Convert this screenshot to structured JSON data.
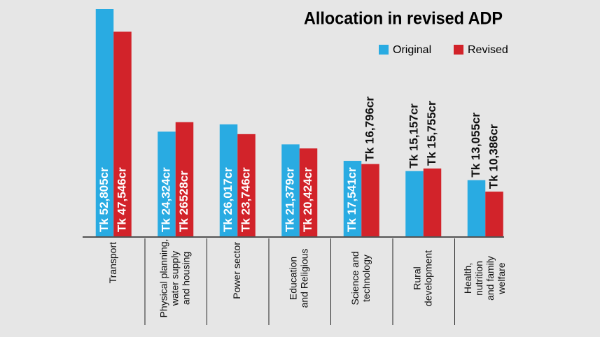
{
  "chart_data": {
    "type": "bar",
    "title": "Allocation in revised ADP",
    "categories": [
      [
        "Transport"
      ],
      [
        "Physical planning,",
        "water supply",
        "and housing"
      ],
      [
        "Power sector"
      ],
      [
        "Education",
        "and Religious"
      ],
      [
        "Science and",
        "technology"
      ],
      [
        "Rural",
        "development"
      ],
      [
        "Health,",
        "nutrition",
        "and family",
        "welfare"
      ]
    ],
    "series": [
      {
        "name": "Original",
        "color": "#29abe2",
        "values": [
          52805,
          24324,
          26017,
          21379,
          17541,
          15157,
          13055
        ],
        "value_labels": [
          "Tk 52,805cr",
          "Tk 24,324cr",
          "Tk 26,017cr",
          "Tk 21,379cr",
          "Tk 17,541cr",
          "Tk 15,157cr",
          "Tk 13,055cr"
        ]
      },
      {
        "name": "Revised",
        "color": "#d2232a",
        "values": [
          47546,
          26528,
          23746,
          20424,
          16796,
          15755,
          10386
        ],
        "value_labels": [
          "Tk 47,546cr",
          "Tk 26528cr",
          "Tk 23,746cr",
          "Tk 20,424cr",
          "Tk 16,796cr",
          "Tk 15,755cr",
          "Tk 10,386cr"
        ]
      }
    ]
  }
}
